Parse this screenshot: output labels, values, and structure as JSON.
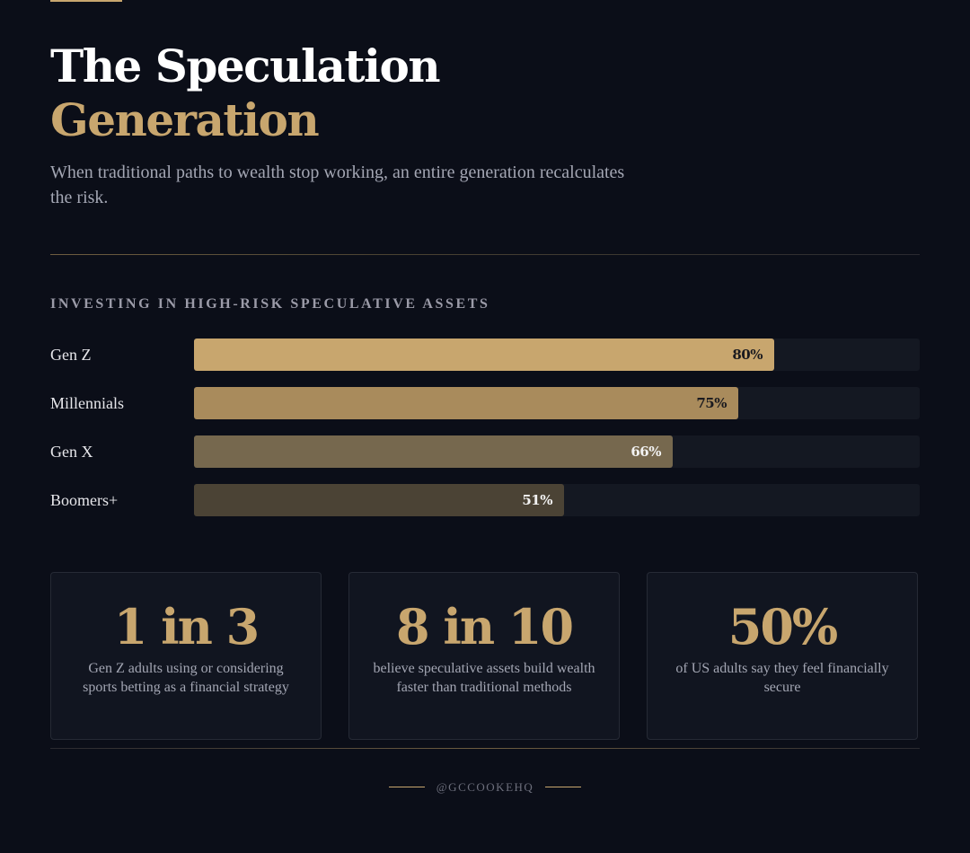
{
  "header": {
    "title_line1": "The Speculation",
    "title_line2": "Generation",
    "subtitle": "When traditional paths to wealth stop working, an entire generation recalculates the risk."
  },
  "colors": {
    "accent": "#c8a66e",
    "background": "#0b0e18",
    "track": "#141822",
    "bar_gen_z": "#c8a66e",
    "bar_millennials": "#a98b5c",
    "bar_gen_x": "#76684e",
    "bar_boomers": "#4b4335"
  },
  "chart_data": {
    "type": "bar",
    "orientation": "horizontal",
    "title": "INVESTING IN HIGH-RISK SPECULATIVE ASSETS",
    "categories": [
      "Gen Z",
      "Millennials",
      "Gen X",
      "Boomers+"
    ],
    "values": [
      80,
      75,
      66,
      51
    ],
    "value_labels": [
      "80%",
      "75%",
      "66%",
      "51%"
    ],
    "unit": "%",
    "xlim": [
      0,
      100
    ],
    "grid": false,
    "legend": "none"
  },
  "stats": [
    {
      "number": "1 in 3",
      "description": "Gen Z adults using or considering sports betting as a financial strategy"
    },
    {
      "number": "8 in 10",
      "description": "believe speculative assets build wealth faster than traditional methods"
    },
    {
      "number": "50%",
      "description": "of US adults say they feel financially secure"
    }
  ],
  "footer": {
    "handle": "@GCCOOKEHQ"
  }
}
